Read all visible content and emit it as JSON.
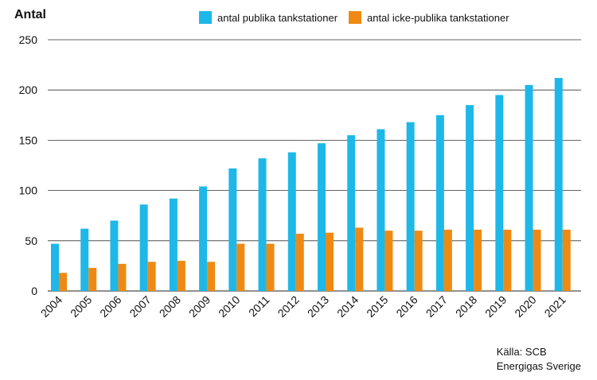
{
  "chart_data": {
    "type": "bar",
    "ylabel": "Antal",
    "ylim": [
      0,
      250
    ],
    "yticks": [
      0,
      50,
      100,
      150,
      200,
      250
    ],
    "grid": true,
    "legend_position": "top",
    "categories": [
      "2004",
      "2005",
      "2006",
      "2007",
      "2008",
      "2009",
      "2010",
      "2011",
      "2012",
      "2013",
      "2014",
      "2015",
      "2016",
      "2017",
      "2018",
      "2019",
      "2020",
      "2021"
    ],
    "series": [
      {
        "name": "antal publika tankstationer",
        "color": "#1EB8E8",
        "values": [
          47,
          62,
          70,
          86,
          92,
          104,
          122,
          132,
          138,
          147,
          155,
          161,
          168,
          175,
          185,
          195,
          205,
          212
        ]
      },
      {
        "name": "antal icke-publika tankstationer",
        "color": "#EE8A14",
        "values": [
          18,
          23,
          27,
          29,
          30,
          29,
          47,
          47,
          57,
          58,
          63,
          60,
          60,
          61,
          61,
          61,
          61,
          61
        ]
      }
    ]
  },
  "source": {
    "line1": "Källa: SCB",
    "line2": "Energigas Sverige"
  }
}
